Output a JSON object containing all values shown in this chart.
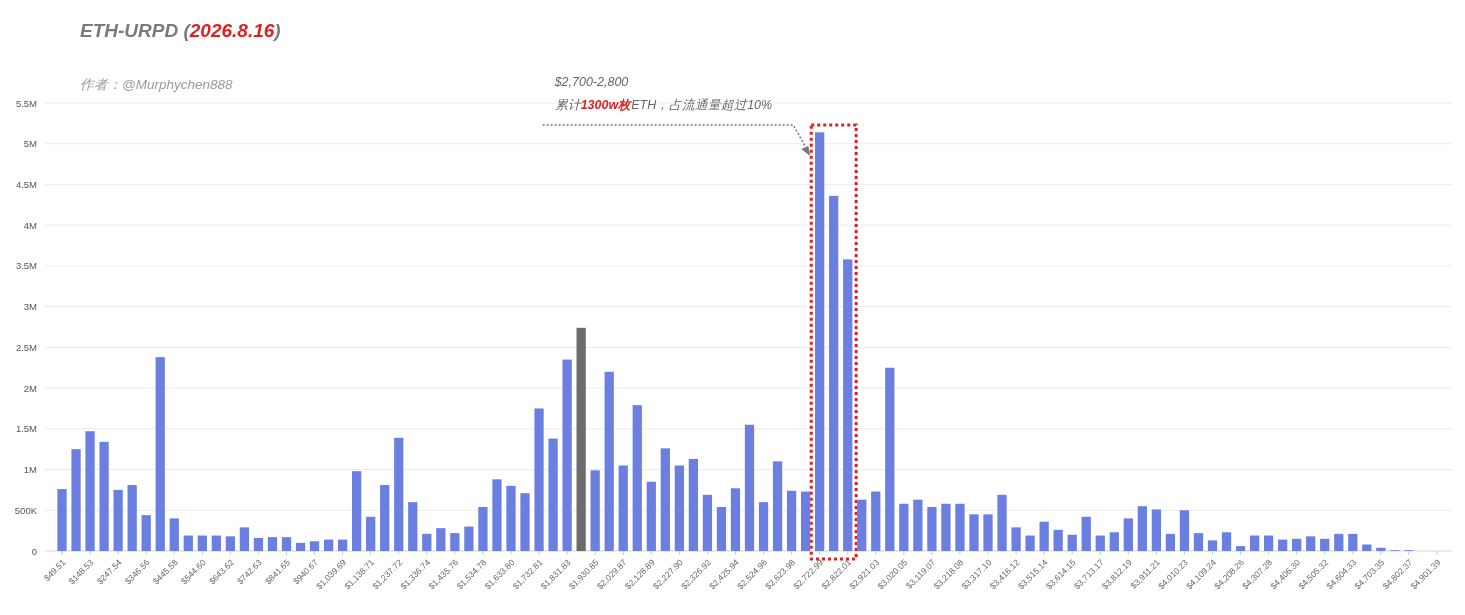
{
  "chart_data": {
    "type": "bar",
    "title": "ETH-URPD (**2026.8.16**)",
    "subtitle": "作者：@Murphychen888",
    "annotations": [
      "$2,700-2,800",
      "累计**1300w枚**ETH，占流通量超过10%"
    ],
    "categories": [
      "$49.51",
      null,
      "$148.53",
      null,
      "$247.54",
      null,
      "$346.56",
      null,
      "$445.58",
      null,
      "$544.60",
      null,
      "$643.62",
      null,
      "$742.63",
      null,
      "$841.65",
      null,
      "$940.67",
      null,
      "$1,039.69",
      null,
      "$1,138.71",
      null,
      "$1,237.72",
      null,
      "$1,336.74",
      null,
      "$1,435.76",
      null,
      "$1,534.78",
      null,
      "$1,633.80",
      null,
      "$1,732.81",
      null,
      "$1,831.83",
      null,
      "$1,930.85",
      null,
      "$2,029.87",
      null,
      "$2,128.89",
      null,
      "$2,227.90",
      null,
      "$2,326.92",
      null,
      "$2,425.94",
      null,
      "$2,524.96",
      null,
      "$2,623.98",
      null,
      "$2,722.99",
      null,
      "$2,822.01",
      null,
      "$2,921.03",
      null,
      "$3,020.05",
      null,
      "$3,119.07",
      null,
      "$3,218.08",
      null,
      "$3,317.10",
      null,
      "$3,416.12",
      null,
      "$3,515.14",
      null,
      "$3,614.15",
      null,
      "$3,713.17",
      null,
      "$3,812.19",
      null,
      "$3,911.21",
      null,
      "$4,010.23",
      null,
      "$4,109.24",
      null,
      "$4,208.26",
      null,
      "$4,307.28",
      null,
      "$4,406.30",
      null,
      "$4,505.32",
      null,
      "$4,604.33",
      null,
      "$4,703.35",
      null,
      "$4,802.37",
      null,
      "$4,901.39"
    ],
    "values": [
      760000,
      1250000,
      1470000,
      1340000,
      750000,
      810000,
      440000,
      2380000,
      400000,
      190000,
      190000,
      190000,
      180000,
      290000,
      160000,
      170000,
      170000,
      100000,
      120000,
      140000,
      140000,
      980000,
      420000,
      810000,
      1390000,
      600000,
      210000,
      280000,
      220000,
      300000,
      540000,
      880000,
      800000,
      710000,
      1750000,
      1380000,
      2350000,
      2740000,
      990000,
      2200000,
      1050000,
      1790000,
      850000,
      1260000,
      1050000,
      1130000,
      690000,
      540000,
      770000,
      1550000,
      600000,
      1100000,
      740000,
      730000,
      5140000,
      4360000,
      3580000,
      630000,
      730000,
      2250000,
      580000,
      630000,
      540000,
      580000,
      580000,
      450000,
      450000,
      690000,
      290000,
      190000,
      360000,
      260000,
      200000,
      420000,
      190000,
      230000,
      400000,
      550000,
      510000,
      210000,
      500000,
      220000,
      130000,
      230000,
      60000,
      190000,
      190000,
      140000,
      150000,
      180000,
      150000,
      210000,
      210000,
      80000,
      40000,
      10000,
      10000,
      0,
      0
    ],
    "colors": [
      "#6a7fe0",
      "#6a7fe0",
      "#6a7fe0",
      "#6a7fe0",
      "#6a7fe0",
      "#6a7fe0",
      "#6a7fe0",
      "#6a7fe0",
      "#6a7fe0",
      "#6a7fe0",
      "#6a7fe0",
      "#6a7fe0",
      "#6a7fe0",
      "#6a7fe0",
      "#6a7fe0",
      "#6a7fe0",
      "#6a7fe0",
      "#6a7fe0",
      "#6a7fe0",
      "#6a7fe0",
      "#6a7fe0",
      "#6a7fe0",
      "#6a7fe0",
      "#6a7fe0",
      "#6a7fe0",
      "#6a7fe0",
      "#6a7fe0",
      "#6a7fe0",
      "#6a7fe0",
      "#6a7fe0",
      "#6a7fe0",
      "#6a7fe0",
      "#6a7fe0",
      "#6a7fe0",
      "#6a7fe0",
      "#6a7fe0",
      "#6a7fe0",
      "#6b6b6b",
      "#6a7fe0",
      "#6a7fe0",
      "#6a7fe0",
      "#6a7fe0",
      "#6a7fe0",
      "#6a7fe0",
      "#6a7fe0",
      "#6a7fe0",
      "#6a7fe0",
      "#6a7fe0",
      "#6a7fe0",
      "#6a7fe0",
      "#6a7fe0",
      "#6a7fe0",
      "#6a7fe0",
      "#6a7fe0",
      "#6a7fe0",
      "#6a7fe0",
      "#6a7fe0",
      "#6a7fe0",
      "#6a7fe0",
      "#6a7fe0",
      "#6a7fe0",
      "#6a7fe0",
      "#6a7fe0",
      "#6a7fe0",
      "#6a7fe0",
      "#6a7fe0",
      "#6a7fe0",
      "#6a7fe0",
      "#6a7fe0",
      "#6a7fe0",
      "#6a7fe0",
      "#6a7fe0",
      "#6a7fe0",
      "#6a7fe0",
      "#6a7fe0",
      "#6a7fe0",
      "#6a7fe0",
      "#6a7fe0",
      "#6a7fe0",
      "#6a7fe0",
      "#6a7fe0",
      "#6a7fe0",
      "#6a7fe0",
      "#6a7fe0",
      "#6a7fe0",
      "#6a7fe0",
      "#6a7fe0",
      "#6a7fe0",
      "#6a7fe0",
      "#6a7fe0",
      "#6a7fe0",
      "#6a7fe0",
      "#6a7fe0",
      "#6a7fe0",
      "#6a7fe0",
      "#6a7fe0",
      "#6a7fe0",
      "#6a7fe0",
      "#6a7fe0"
    ],
    "ylim": [
      0,
      5500000
    ],
    "yticks": [
      0,
      {
        "value": 500000,
        "label": "500K"
      },
      {
        "value": 1000000,
        "label": "1M"
      },
      {
        "value": 1500000,
        "label": "1.5M"
      },
      {
        "value": 2000000,
        "label": "2M"
      },
      {
        "value": 2500000,
        "label": "2.5M"
      },
      {
        "value": 3000000,
        "label": "3M"
      },
      {
        "value": 3500000,
        "label": "3.5M"
      },
      {
        "value": 4000000,
        "label": "4M"
      },
      {
        "value": 4500000,
        "label": "4.5M"
      },
      {
        "value": 5000000,
        "label": "5M"
      },
      {
        "value": 5500000,
        "label": "5.5M"
      }
    ],
    "grid": "y"
  }
}
